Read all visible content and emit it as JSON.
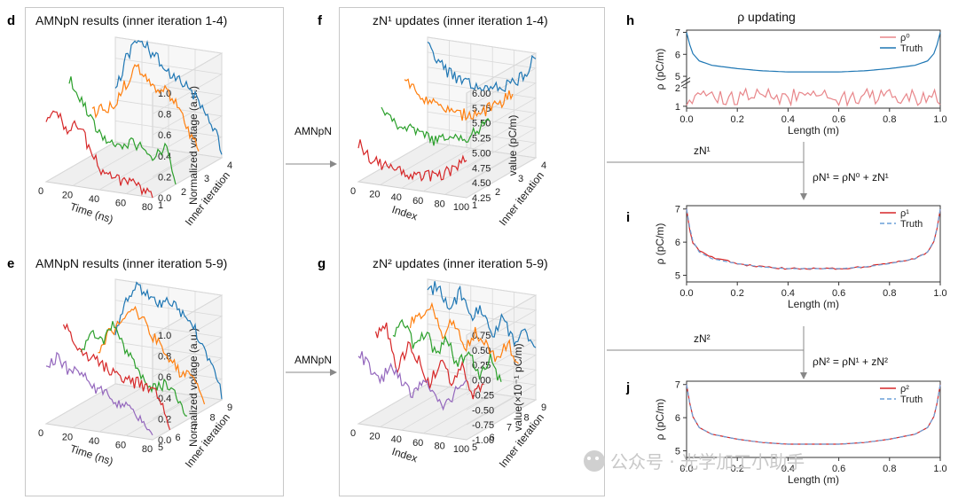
{
  "panels": {
    "d": {
      "label": "d",
      "title": "AMNpN results (inner iteration 1-4)"
    },
    "e": {
      "label": "e",
      "title": "AMNpN results (inner iteration 5-9)"
    },
    "f": {
      "label": "f",
      "title": "zN¹ updates (inner iteration 1-4)"
    },
    "g": {
      "label": "g",
      "title": "zN² updates (inner iteration 5-9)"
    },
    "h": {
      "label": "h",
      "title": "ρ updating"
    },
    "i": {
      "label": "i"
    },
    "j": {
      "label": "j"
    }
  },
  "arrows": {
    "amnpn1": "AMNpN",
    "amnpn2": "AMNpN",
    "zn1": "zN¹",
    "zn2": "zN²",
    "eq1": "ρN¹ = ρN⁰ + zN¹",
    "eq2": "ρN² = ρN¹ + zN²"
  },
  "watermark": "公众号 · 光学加工小助手",
  "colors": {
    "red": "#d62728",
    "green": "#2ca02c",
    "orange": "#ff7f0e",
    "blue": "#1f77b4",
    "purple": "#9467bd",
    "pink": "#e8868a",
    "dash": "#6a9fd8"
  },
  "chart_data": [
    {
      "id": "d",
      "type": "line",
      "title": "AMNpN results (inner iteration 1-4)",
      "xlabel": "Time (ns)",
      "ylabel": "Inner iteration",
      "zlabel": "Normalized voltage (a.u.)",
      "x_ticks": [
        "0",
        "20",
        "40",
        "60",
        "80"
      ],
      "y_ticks": [
        "1",
        "2",
        "3",
        "4"
      ],
      "z_ticks": [
        "0.0",
        "0.2",
        "0.4",
        "0.6",
        "0.8",
        "1.0"
      ],
      "xlim": [
        0,
        80
      ],
      "zlim": [
        0,
        1
      ],
      "series": [
        {
          "iteration": 1,
          "color": "red",
          "x": [
            0,
            8,
            16,
            24,
            32,
            40,
            48,
            56,
            64,
            72,
            80
          ],
          "values": [
            0.6,
            0.65,
            0.55,
            0.6,
            0.4,
            0.2,
            0.15,
            0.1,
            0.12,
            0.05,
            0.0
          ]
        },
        {
          "iteration": 2,
          "color": "green",
          "x": [
            0,
            8,
            16,
            24,
            32,
            40,
            48,
            56,
            64,
            72,
            80
          ],
          "values": [
            0.85,
            0.7,
            0.5,
            0.35,
            0.3,
            0.3,
            0.35,
            0.3,
            0.2,
            0.35,
            0.05
          ]
        },
        {
          "iteration": 3,
          "color": "orange",
          "x": [
            0,
            8,
            16,
            24,
            32,
            40,
            48,
            56,
            64,
            72,
            80
          ],
          "values": [
            0.4,
            0.45,
            0.5,
            0.7,
            0.9,
            0.85,
            0.75,
            0.7,
            0.6,
            0.35,
            0.2
          ]
        },
        {
          "iteration": 4,
          "color": "blue",
          "x": [
            0,
            8,
            16,
            24,
            32,
            40,
            48,
            56,
            64,
            72,
            80
          ],
          "values": [
            0.5,
            0.8,
            1.0,
            0.95,
            0.85,
            0.75,
            0.7,
            0.6,
            0.5,
            0.35,
            0.05
          ]
        }
      ]
    },
    {
      "id": "e",
      "type": "line",
      "title": "AMNpN results (inner iteration 5-9)",
      "xlabel": "Time (ns)",
      "ylabel": "Inner iteration",
      "zlabel": "Normalized voltage (a.u.)",
      "x_ticks": [
        "0",
        "20",
        "40",
        "60",
        "80"
      ],
      "y_ticks": [
        "5",
        "6",
        "7",
        "8",
        "9"
      ],
      "z_ticks": [
        "0.0",
        "0.2",
        "0.4",
        "0.6",
        "0.8",
        "1.0"
      ],
      "xlim": [
        0,
        80
      ],
      "zlim": [
        0,
        1
      ],
      "series": [
        {
          "iteration": 5,
          "color": "purple",
          "x": [
            0,
            8,
            16,
            24,
            32,
            40,
            48,
            56,
            64,
            72,
            80
          ],
          "values": [
            0.5,
            0.65,
            0.55,
            0.55,
            0.45,
            0.4,
            0.35,
            0.3,
            0.25,
            0.15,
            0.0
          ]
        },
        {
          "iteration": 6,
          "color": "red",
          "x": [
            0,
            8,
            16,
            24,
            32,
            40,
            48,
            56,
            64,
            72,
            80
          ],
          "values": [
            0.85,
            0.7,
            0.6,
            0.55,
            0.5,
            0.45,
            0.4,
            0.4,
            0.35,
            0.3,
            0.0
          ]
        },
        {
          "iteration": 7,
          "color": "green",
          "x": [
            0,
            8,
            16,
            24,
            32,
            40,
            48,
            56,
            64,
            72,
            80
          ],
          "values": [
            0.5,
            0.7,
            0.6,
            0.8,
            0.6,
            0.45,
            0.3,
            0.25,
            0.3,
            0.2,
            0.0
          ]
        },
        {
          "iteration": 8,
          "color": "orange",
          "x": [
            0,
            8,
            16,
            24,
            32,
            40,
            48,
            56,
            64,
            72,
            80
          ],
          "values": [
            0.4,
            0.6,
            0.7,
            0.85,
            0.8,
            0.65,
            0.55,
            0.4,
            0.3,
            0.3,
            0.05
          ]
        },
        {
          "iteration": 9,
          "color": "blue",
          "x": [
            0,
            8,
            16,
            24,
            32,
            40,
            48,
            56,
            64,
            72,
            80
          ],
          "values": [
            0.5,
            0.85,
            0.95,
            0.9,
            0.8,
            0.85,
            0.8,
            0.7,
            0.55,
            0.35,
            0.05
          ]
        }
      ]
    },
    {
      "id": "f",
      "type": "line",
      "title": "zN¹ updates (inner iteration 1-4)",
      "xlabel": "Index",
      "ylabel": "Inner iteration",
      "zlabel": "value (pC/m)",
      "x_ticks": [
        "0",
        "20",
        "40",
        "60",
        "80",
        "100"
      ],
      "y_ticks": [
        "1",
        "2",
        "3",
        "4"
      ],
      "z_ticks": [
        "4.25",
        "4.50",
        "4.75",
        "5.00",
        "5.25",
        "5.50",
        "5.75",
        "6.00"
      ],
      "xlim": [
        0,
        100
      ],
      "zlim": [
        4.25,
        6.0
      ],
      "series": [
        {
          "iteration": 1,
          "color": "red",
          "x": [
            0,
            10,
            20,
            30,
            40,
            50,
            60,
            70,
            80,
            90,
            100
          ],
          "values": [
            4.9,
            4.7,
            4.6,
            4.55,
            4.5,
            4.45,
            4.5,
            4.55,
            4.6,
            4.7,
            4.9
          ]
        },
        {
          "iteration": 2,
          "color": "green",
          "x": [
            0,
            10,
            20,
            30,
            40,
            50,
            60,
            70,
            80,
            90,
            100
          ],
          "values": [
            5.3,
            5.1,
            5.0,
            4.95,
            4.9,
            4.85,
            4.9,
            4.95,
            5.0,
            5.1,
            5.4
          ]
        },
        {
          "iteration": 3,
          "color": "orange",
          "x": [
            0,
            10,
            20,
            30,
            40,
            50,
            60,
            70,
            80,
            90,
            100
          ],
          "values": [
            5.5,
            5.35,
            5.25,
            5.15,
            5.1,
            5.05,
            5.1,
            5.15,
            5.25,
            5.35,
            5.6
          ]
        },
        {
          "iteration": 4,
          "color": "blue",
          "x": [
            0,
            10,
            20,
            30,
            40,
            50,
            60,
            70,
            80,
            90,
            100
          ],
          "values": [
            5.9,
            5.6,
            5.45,
            5.35,
            5.3,
            5.25,
            5.3,
            5.35,
            5.45,
            5.6,
            6.0
          ]
        }
      ]
    },
    {
      "id": "g",
      "type": "line",
      "title": "zN² updates (inner iteration 5-9)",
      "xlabel": "Index",
      "ylabel": "Inner iteration",
      "zlabel": "value(×10⁻¹ pC/m)",
      "x_ticks": [
        "0",
        "20",
        "40",
        "60",
        "80",
        "100"
      ],
      "y_ticks": [
        "5",
        "6",
        "7",
        "8",
        "9"
      ],
      "z_ticks": [
        "-1.00",
        "-0.75",
        "-0.50",
        "-0.25",
        "0.00",
        "0.25",
        "0.50",
        "0.75"
      ],
      "xlim": [
        0,
        100
      ],
      "zlim": [
        -1.0,
        0.75
      ],
      "series": [
        {
          "iteration": 5,
          "color": "purple",
          "x": [
            0,
            10,
            20,
            30,
            40,
            50,
            60,
            70,
            80,
            90,
            100
          ],
          "values": [
            0.2,
            0.0,
            -0.3,
            0.1,
            -0.2,
            -0.4,
            -0.1,
            -0.3,
            -0.5,
            -0.2,
            0.0
          ]
        },
        {
          "iteration": 6,
          "color": "red",
          "x": [
            0,
            10,
            20,
            30,
            40,
            50,
            60,
            70,
            80,
            90,
            100
          ],
          "values": [
            0.3,
            0.5,
            -0.2,
            0.2,
            0.0,
            -0.4,
            0.1,
            -0.3,
            0.1,
            -0.5,
            -0.2
          ]
        },
        {
          "iteration": 7,
          "color": "green",
          "x": [
            0,
            10,
            20,
            30,
            40,
            50,
            60,
            70,
            80,
            90,
            100
          ],
          "values": [
            0.1,
            0.4,
            0.0,
            0.3,
            -0.1,
            0.2,
            -0.2,
            0.1,
            -0.3,
            0.0,
            -0.4
          ]
        },
        {
          "iteration": 8,
          "color": "orange",
          "x": [
            0,
            10,
            20,
            30,
            40,
            50,
            60,
            70,
            80,
            90,
            100
          ],
          "values": [
            0.2,
            0.3,
            0.5,
            0.1,
            0.3,
            -0.1,
            0.2,
            0.0,
            -0.2,
            0.1,
            -0.3
          ]
        },
        {
          "iteration": 9,
          "color": "blue",
          "x": [
            0,
            10,
            20,
            30,
            40,
            50,
            60,
            70,
            80,
            90,
            100
          ],
          "values": [
            0.5,
            0.7,
            0.3,
            0.6,
            0.2,
            0.4,
            0.0,
            0.3,
            -0.1,
            0.2,
            -0.2
          ]
        }
      ]
    },
    {
      "id": "h",
      "type": "line",
      "title": "ρ updating",
      "xlabel": "Length (m)",
      "ylabel": "ρ (pC/m)",
      "x_ticks": [
        "0.0",
        "0.2",
        "0.4",
        "0.6",
        "0.8",
        "1.0"
      ],
      "y_ticks_top": [
        "5",
        "6",
        "7"
      ],
      "y_ticks_bottom": [
        "1",
        "2"
      ],
      "xlim": [
        0,
        1
      ],
      "broken_axis": true,
      "legend": [
        "ρ⁰",
        "Truth"
      ],
      "series": [
        {
          "name": "ρ⁰",
          "color": "pink",
          "x": [
            0,
            0.05,
            0.1,
            0.15,
            0.2,
            0.25,
            0.3,
            0.35,
            0.4,
            0.45,
            0.5,
            0.55,
            0.6,
            0.65,
            0.7,
            0.75,
            0.8,
            0.85,
            0.9,
            0.95,
            1.0
          ],
          "values": [
            1.6,
            1.2,
            1.9,
            1.3,
            1.7,
            1.1,
            1.8,
            1.4,
            1.6,
            1.2,
            1.9,
            1.3,
            1.7,
            1.2,
            1.8,
            1.3,
            1.6,
            1.2,
            1.9,
            1.4,
            1.7
          ]
        },
        {
          "name": "Truth",
          "color": "blue",
          "x": [
            0,
            0.02,
            0.05,
            0.1,
            0.2,
            0.3,
            0.4,
            0.5,
            0.6,
            0.7,
            0.8,
            0.9,
            0.95,
            0.98,
            1.0
          ],
          "values": [
            7.0,
            6.1,
            5.7,
            5.5,
            5.35,
            5.25,
            5.2,
            5.2,
            5.2,
            5.25,
            5.35,
            5.5,
            5.7,
            6.1,
            7.0
          ]
        }
      ]
    },
    {
      "id": "i",
      "type": "line",
      "xlabel": "Length (m)",
      "ylabel": "ρ (pC/m)",
      "x_ticks": [
        "0.0",
        "0.2",
        "0.4",
        "0.6",
        "0.8",
        "1.0"
      ],
      "y_ticks": [
        "5",
        "6",
        "7"
      ],
      "xlim": [
        0,
        1
      ],
      "ylim": [
        4.8,
        7.1
      ],
      "legend": [
        "ρ¹",
        "Truth"
      ],
      "series": [
        {
          "name": "ρ¹",
          "color": "red",
          "x": [
            0,
            0.02,
            0.05,
            0.1,
            0.2,
            0.3,
            0.4,
            0.5,
            0.6,
            0.7,
            0.8,
            0.9,
            0.95,
            0.98,
            1.0
          ],
          "values": [
            7.0,
            6.0,
            5.75,
            5.55,
            5.35,
            5.25,
            5.2,
            5.2,
            5.2,
            5.25,
            5.35,
            5.5,
            5.7,
            6.1,
            7.0
          ]
        },
        {
          "name": "Truth",
          "color": "dash",
          "x": [
            0,
            0.02,
            0.05,
            0.1,
            0.2,
            0.3,
            0.4,
            0.5,
            0.6,
            0.7,
            0.8,
            0.9,
            0.95,
            0.98,
            1.0
          ],
          "values": [
            7.0,
            6.1,
            5.7,
            5.5,
            5.35,
            5.25,
            5.2,
            5.2,
            5.2,
            5.25,
            5.35,
            5.5,
            5.7,
            6.1,
            7.0
          ]
        }
      ]
    },
    {
      "id": "j",
      "type": "line",
      "xlabel": "Length (m)",
      "ylabel": "ρ (pC/m)",
      "x_ticks": [
        "0.0",
        "0.2",
        "0.4",
        "0.6",
        "0.8",
        "1.0"
      ],
      "y_ticks": [
        "5",
        "6",
        "7"
      ],
      "xlim": [
        0,
        1
      ],
      "ylim": [
        4.8,
        7.1
      ],
      "legend": [
        "ρ²",
        "Truth"
      ],
      "series": [
        {
          "name": "ρ²",
          "color": "red",
          "x": [
            0,
            0.02,
            0.05,
            0.1,
            0.2,
            0.3,
            0.4,
            0.5,
            0.6,
            0.7,
            0.8,
            0.9,
            0.95,
            0.98,
            1.0
          ],
          "values": [
            7.0,
            6.1,
            5.7,
            5.5,
            5.35,
            5.25,
            5.2,
            5.2,
            5.2,
            5.25,
            5.35,
            5.5,
            5.7,
            6.1,
            7.0
          ]
        },
        {
          "name": "Truth",
          "color": "dash",
          "x": [
            0,
            0.02,
            0.05,
            0.1,
            0.2,
            0.3,
            0.4,
            0.5,
            0.6,
            0.7,
            0.8,
            0.9,
            0.95,
            0.98,
            1.0
          ],
          "values": [
            7.0,
            6.1,
            5.7,
            5.5,
            5.35,
            5.25,
            5.2,
            5.2,
            5.2,
            5.25,
            5.35,
            5.5,
            5.7,
            6.1,
            7.0
          ]
        }
      ]
    }
  ]
}
